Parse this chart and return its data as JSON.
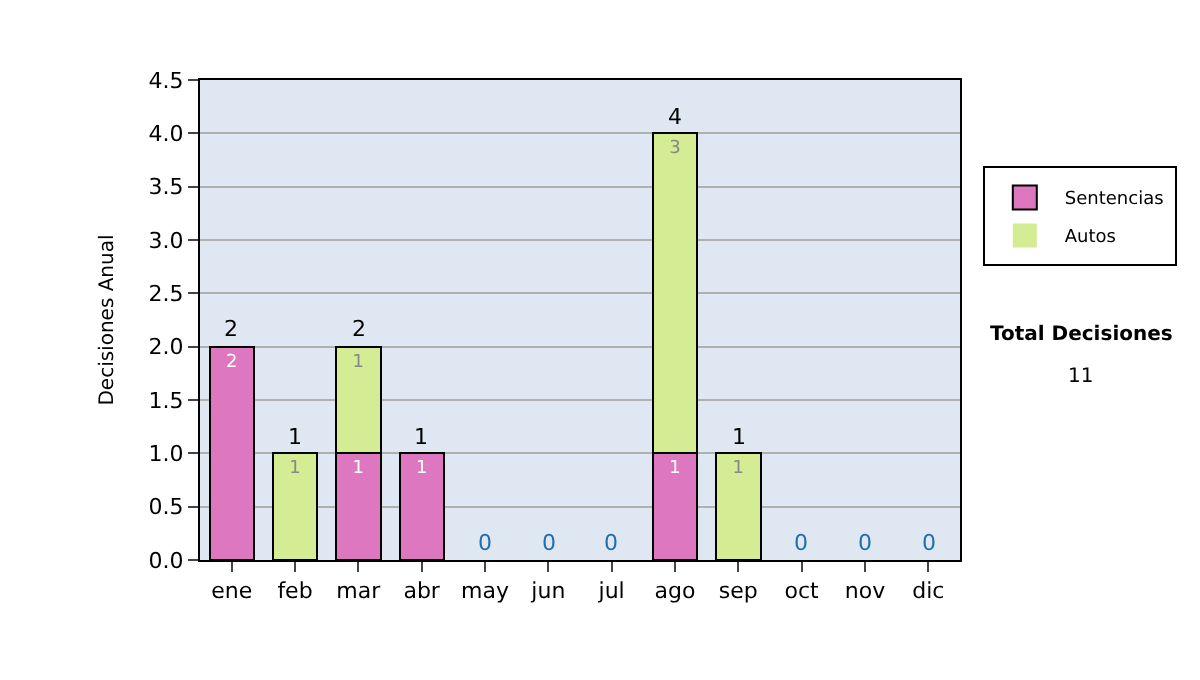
{
  "chart_data": {
    "type": "bar",
    "stacked": true,
    "ylabel": "Decisiones Anual",
    "categories": [
      "ene",
      "feb",
      "mar",
      "abr",
      "may",
      "jun",
      "jul",
      "ago",
      "sep",
      "oct",
      "nov",
      "dic"
    ],
    "series": [
      {
        "name": "Sentencias",
        "color": "#dd77c0",
        "values": [
          2,
          0,
          1,
          1,
          0,
          0,
          0,
          1,
          0,
          0,
          0,
          0
        ],
        "value_labels": [
          "2",
          null,
          "1",
          "1",
          null,
          null,
          null,
          "1",
          null,
          null,
          null,
          null
        ]
      },
      {
        "name": "Autos",
        "color": "#d4ec94",
        "values": [
          0,
          1,
          1,
          0,
          0,
          0,
          0,
          3,
          1,
          0,
          0,
          0
        ],
        "value_labels": [
          null,
          "1",
          "1",
          null,
          null,
          null,
          null,
          "3",
          "1",
          null,
          null,
          null
        ]
      }
    ],
    "totals": [
      "2",
      "1",
      "2",
      "1",
      "0",
      "0",
      "0",
      "4",
      "1",
      "0",
      "0",
      "0"
    ],
    "ylim": [
      0,
      4.5
    ],
    "yticks": [
      {
        "value": 0,
        "label": "0.0"
      },
      {
        "value": 0.5,
        "label": "0.5"
      },
      {
        "value": 1,
        "label": "1.0"
      },
      {
        "value": 1.5,
        "label": "1.5"
      },
      {
        "value": 2,
        "label": "2.0"
      },
      {
        "value": 2.5,
        "label": "2.5"
      },
      {
        "value": 3,
        "label": "3.0"
      },
      {
        "value": 3.5,
        "label": "3.5"
      },
      {
        "value": 4,
        "label": "4.0"
      },
      {
        "value": 4.5,
        "label": "4.5"
      }
    ],
    "grid": "y",
    "legend": "right",
    "annotations": [
      "Total Decisiones",
      "11"
    ]
  }
}
